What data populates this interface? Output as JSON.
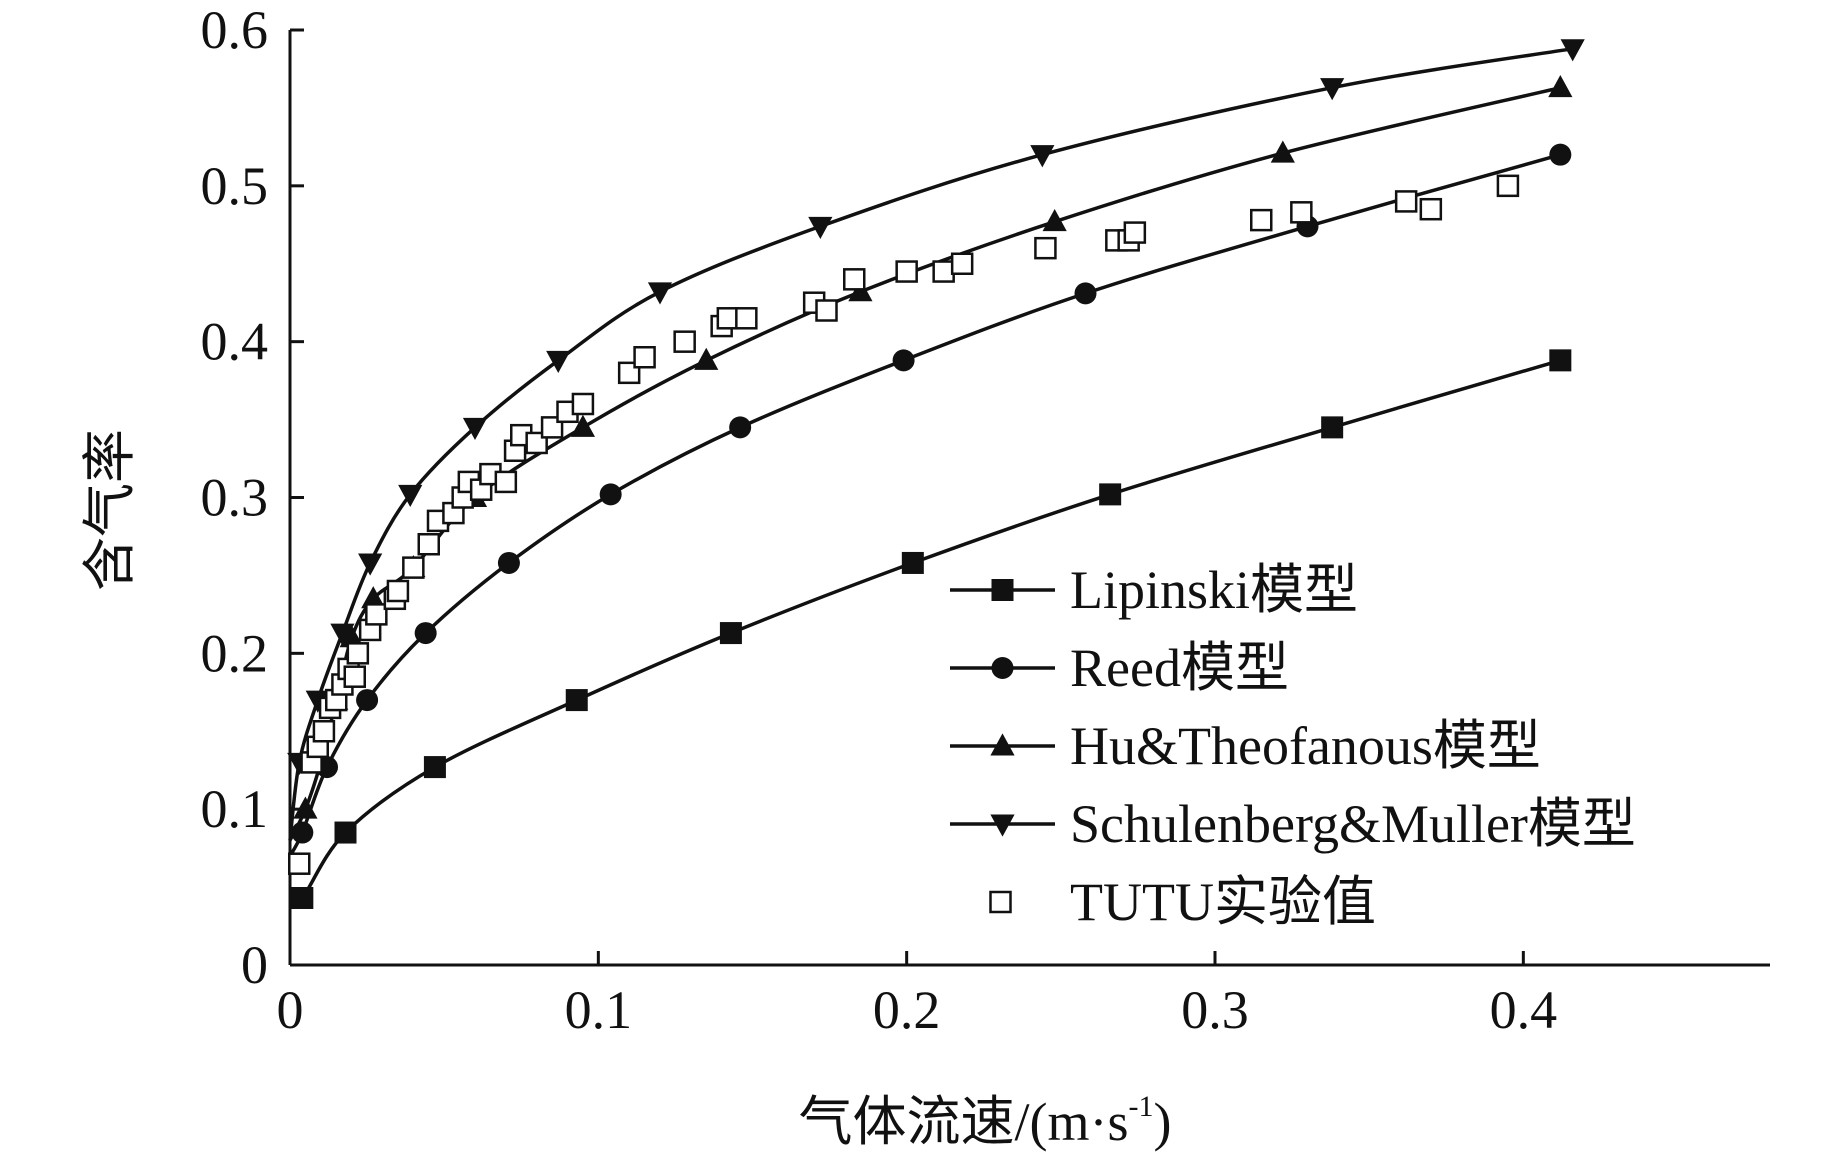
{
  "chart_data": {
    "type": "line",
    "title": "",
    "xlabel": "气体流速/(m·s",
    "xlabel_sup": "-1",
    "xlabel_close": ")",
    "ylabel": "含气率",
    "xlim": [
      0,
      0.48
    ],
    "ylim": [
      0,
      0.6
    ],
    "xticks": [
      "0",
      "0.1",
      "0.2",
      "0.3",
      "0.4"
    ],
    "yticks": [
      "0",
      "0.1",
      "0.2",
      "0.3",
      "0.4",
      "0.5",
      "0.6"
    ],
    "xtick_values": [
      0,
      0.1,
      0.2,
      0.3,
      0.4
    ],
    "ytick_values": [
      0,
      0.1,
      0.2,
      0.3,
      0.4,
      0.5,
      0.6
    ],
    "grid": false,
    "legend_position": "bottom-right",
    "series": [
      {
        "name": "Lipinski模型",
        "marker": "square",
        "style": "line",
        "x": [
          0,
          0.004,
          0.018,
          0.047,
          0.093,
          0.143,
          0.202,
          0.266,
          0.338,
          0.412
        ],
        "y": [
          0.04,
          0.043,
          0.085,
          0.127,
          0.17,
          0.213,
          0.258,
          0.302,
          0.345,
          0.388
        ]
      },
      {
        "name": "Reed模型",
        "marker": "circle",
        "style": "line",
        "x": [
          0,
          0.004,
          0.012,
          0.025,
          0.044,
          0.071,
          0.104,
          0.146,
          0.199,
          0.258,
          0.33,
          0.412
        ],
        "y": [
          0.07,
          0.085,
          0.127,
          0.17,
          0.213,
          0.258,
          0.302,
          0.345,
          0.388,
          0.431,
          0.474,
          0.52
        ]
      },
      {
        "name": "Hu&Theofanous模型",
        "marker": "triangle-up",
        "style": "line",
        "x": [
          0,
          0.005,
          0.01,
          0.015,
          0.02,
          0.027,
          0.04,
          0.06,
          0.095,
          0.135,
          0.185,
          0.248,
          0.322,
          0.412
        ],
        "y": [
          0.08,
          0.1,
          0.13,
          0.17,
          0.21,
          0.235,
          0.255,
          0.3,
          0.345,
          0.388,
          0.432,
          0.477,
          0.521,
          0.563
        ]
      },
      {
        "name": "Schulenberg&Muller模型",
        "marker": "triangle-down",
        "style": "line",
        "x": [
          0,
          0.003,
          0.009,
          0.017,
          0.026,
          0.039,
          0.06,
          0.087,
          0.12,
          0.172,
          0.244,
          0.338,
          0.416
        ],
        "y": [
          0.08,
          0.13,
          0.17,
          0.213,
          0.258,
          0.302,
          0.345,
          0.388,
          0.432,
          0.474,
          0.52,
          0.563,
          0.588
        ]
      },
      {
        "name": "TUTU实验值",
        "marker": "open-square",
        "style": "points",
        "x": [
          0.003,
          0.007,
          0.009,
          0.011,
          0.013,
          0.015,
          0.017,
          0.019,
          0.021,
          0.022,
          0.026,
          0.028,
          0.034,
          0.035,
          0.04,
          0.045,
          0.048,
          0.053,
          0.056,
          0.058,
          0.062,
          0.065,
          0.07,
          0.073,
          0.075,
          0.08,
          0.085,
          0.09,
          0.095,
          0.11,
          0.115,
          0.128,
          0.14,
          0.142,
          0.148,
          0.17,
          0.174,
          0.183,
          0.2,
          0.212,
          0.218,
          0.245,
          0.268,
          0.272,
          0.274,
          0.315,
          0.328,
          0.362,
          0.37,
          0.395
        ],
        "y": [
          0.065,
          0.13,
          0.14,
          0.15,
          0.165,
          0.17,
          0.18,
          0.19,
          0.185,
          0.2,
          0.215,
          0.225,
          0.235,
          0.24,
          0.255,
          0.27,
          0.285,
          0.29,
          0.3,
          0.31,
          0.305,
          0.315,
          0.31,
          0.33,
          0.34,
          0.335,
          0.345,
          0.355,
          0.36,
          0.38,
          0.39,
          0.4,
          0.41,
          0.415,
          0.415,
          0.425,
          0.42,
          0.44,
          0.445,
          0.445,
          0.45,
          0.46,
          0.465,
          0.465,
          0.47,
          0.478,
          0.483,
          0.49,
          0.485,
          0.5
        ]
      }
    ]
  }
}
